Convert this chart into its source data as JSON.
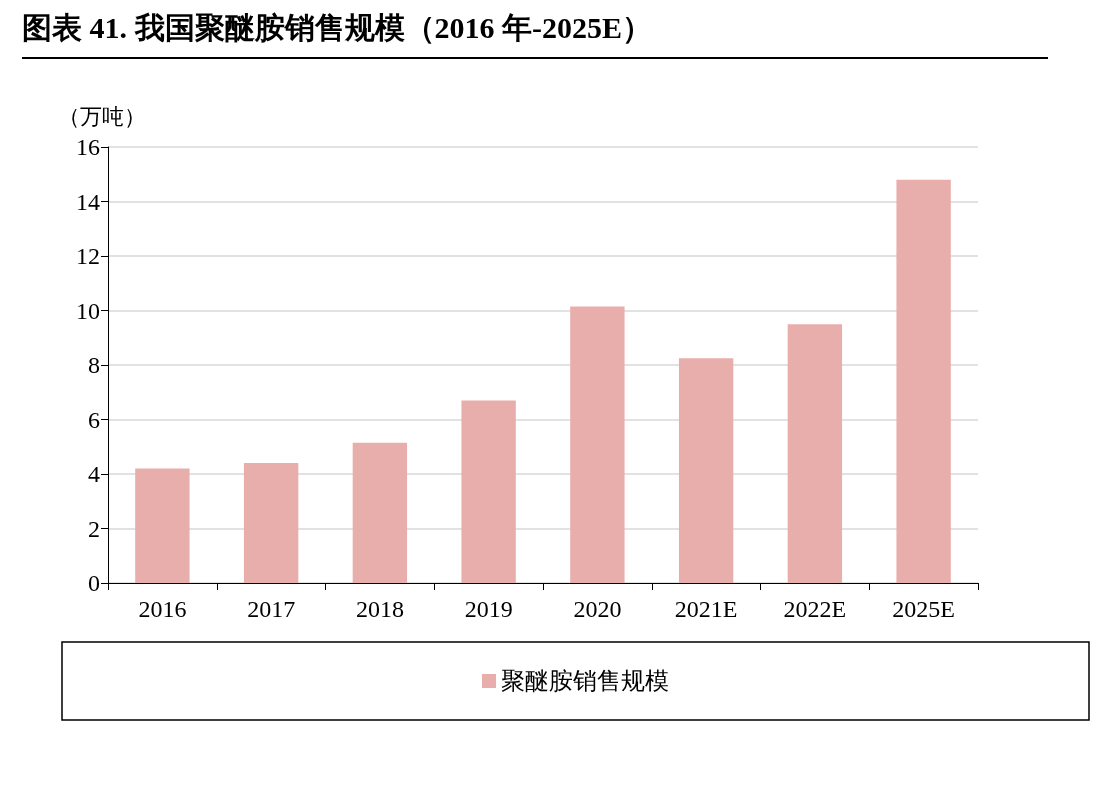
{
  "chart_data": {
    "type": "bar",
    "title": "图表 41. 我国聚醚胺销售规模（2016 年-2025E）",
    "ylabel": "（万吨）",
    "categories": [
      "2016",
      "2017",
      "2018",
      "2019",
      "2020",
      "2021E",
      "2022E",
      "2025E"
    ],
    "series": [
      {
        "name": "聚醚胺销售规模",
        "color": "#e8aeac",
        "values": [
          4.2,
          4.4,
          5.15,
          6.7,
          10.15,
          8.25,
          9.5,
          14.8
        ]
      }
    ],
    "ylim": [
      0,
      16
    ],
    "yticks": [
      0,
      2,
      4,
      6,
      8,
      10,
      12,
      14,
      16
    ],
    "grid": "y",
    "legend": "bottom"
  }
}
